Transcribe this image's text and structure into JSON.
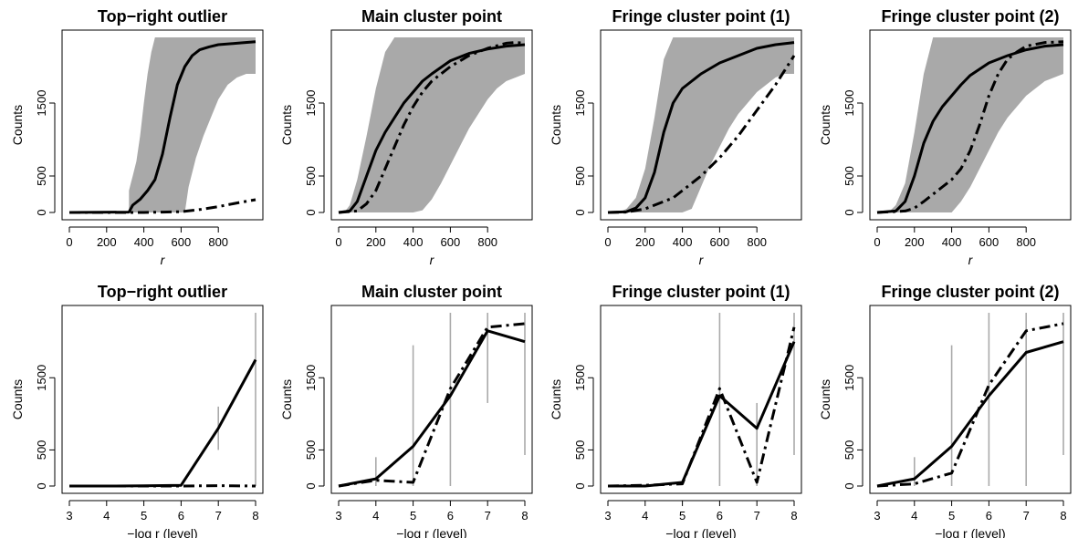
{
  "chart_data": [
    {
      "type": "line",
      "row": 1,
      "title": "Top−right outlier",
      "xlabel": "r",
      "ylabel": "Counts",
      "xlim": [
        0,
        1000
      ],
      "ylim": [
        0,
        2400
      ],
      "xticks": [
        0,
        200,
        400,
        600,
        800
      ],
      "yticks": [
        0,
        500,
        1500
      ],
      "band": {
        "x": [
          320,
          330,
          340,
          360,
          380,
          400,
          420,
          440,
          460,
          480,
          500,
          520,
          540,
          560,
          580,
          600,
          620,
          640,
          680,
          720,
          760,
          800,
          850,
          900,
          950,
          1000
        ],
        "lower": [
          0,
          0,
          0,
          0,
          0,
          0,
          0,
          0,
          0,
          0,
          0,
          0,
          0,
          0,
          0,
          0,
          0,
          350,
          750,
          1050,
          1300,
          1550,
          1750,
          1850,
          1900,
          1900
        ],
        "upper": [
          300,
          400,
          500,
          700,
          1050,
          1500,
          1900,
          2200,
          2400,
          2400,
          2400,
          2400,
          2400,
          2400,
          2400,
          2400,
          2400,
          2400,
          2400,
          2400,
          2400,
          2400,
          2400,
          2400,
          2400,
          2400
        ]
      },
      "series": [
        {
          "style": "solid",
          "x": [
            0,
            320,
            340,
            380,
            420,
            460,
            500,
            540,
            580,
            620,
            660,
            700,
            750,
            800,
            900,
            1000
          ],
          "y": [
            0,
            5,
            100,
            180,
            300,
            450,
            800,
            1300,
            1750,
            2000,
            2150,
            2230,
            2270,
            2300,
            2320,
            2340
          ]
        },
        {
          "style": "dashdot",
          "x": [
            0,
            300,
            400,
            500,
            600,
            700,
            800,
            900,
            1000
          ],
          "y": [
            0,
            0,
            0,
            5,
            10,
            40,
            80,
            130,
            175
          ]
        }
      ]
    },
    {
      "type": "line",
      "row": 1,
      "title": "Main cluster point",
      "xlabel": "r",
      "ylabel": "Counts",
      "xlim": [
        0,
        1000
      ],
      "ylim": [
        0,
        2400
      ],
      "xticks": [
        0,
        200,
        400,
        600,
        800
      ],
      "yticks": [
        0,
        500,
        1500
      ],
      "band": {
        "x": [
          30,
          60,
          100,
          150,
          200,
          250,
          300,
          350,
          400,
          450,
          500,
          550,
          600,
          650,
          700,
          750,
          800,
          850,
          900,
          950,
          1000
        ],
        "lower": [
          0,
          0,
          0,
          0,
          0,
          0,
          0,
          0,
          0,
          30,
          180,
          400,
          650,
          900,
          1150,
          1350,
          1550,
          1700,
          1800,
          1850,
          1900
        ],
        "upper": [
          0,
          100,
          450,
          1050,
          1700,
          2200,
          2400,
          2400,
          2400,
          2400,
          2400,
          2400,
          2400,
          2400,
          2400,
          2400,
          2400,
          2400,
          2400,
          2400,
          2400
        ]
      },
      "series": [
        {
          "style": "solid",
          "x": [
            0,
            60,
            100,
            150,
            200,
            250,
            300,
            350,
            400,
            450,
            500,
            600,
            700,
            800,
            900,
            1000
          ],
          "y": [
            0,
            20,
            150,
            500,
            850,
            1100,
            1300,
            1500,
            1650,
            1800,
            1900,
            2080,
            2180,
            2240,
            2280,
            2300
          ]
        },
        {
          "style": "dashdot",
          "x": [
            0,
            100,
            150,
            200,
            250,
            300,
            350,
            400,
            450,
            500,
            600,
            700,
            800,
            900,
            950,
            1000
          ],
          "y": [
            0,
            20,
            120,
            300,
            600,
            900,
            1200,
            1450,
            1650,
            1800,
            2000,
            2150,
            2250,
            2320,
            2330,
            2320
          ]
        }
      ]
    },
    {
      "type": "line",
      "row": 1,
      "title": "Fringe cluster point (1)",
      "xlabel": "r",
      "ylabel": "Counts",
      "xlim": [
        0,
        1000
      ],
      "ylim": [
        0,
        2400
      ],
      "xticks": [
        0,
        200,
        400,
        600,
        800
      ],
      "yticks": [
        0,
        500,
        1500
      ],
      "band": {
        "x": [
          60,
          100,
          150,
          200,
          250,
          300,
          350,
          400,
          450,
          500,
          550,
          600,
          650,
          700,
          750,
          800,
          850,
          900,
          950,
          1000
        ],
        "lower": [
          0,
          0,
          0,
          0,
          0,
          0,
          0,
          0,
          50,
          350,
          650,
          900,
          1150,
          1350,
          1500,
          1650,
          1750,
          1850,
          1900,
          1900
        ],
        "upper": [
          0,
          50,
          200,
          600,
          1300,
          2100,
          2400,
          2400,
          2400,
          2400,
          2400,
          2400,
          2400,
          2400,
          2400,
          2400,
          2400,
          2400,
          2400,
          2400
        ]
      },
      "series": [
        {
          "style": "solid",
          "x": [
            0,
            100,
            150,
            200,
            250,
            300,
            350,
            400,
            450,
            500,
            600,
            700,
            800,
            900,
            1000
          ],
          "y": [
            0,
            10,
            60,
            200,
            550,
            1100,
            1500,
            1700,
            1800,
            1900,
            2050,
            2150,
            2250,
            2300,
            2330
          ]
        },
        {
          "style": "dashdot",
          "x": [
            0,
            100,
            200,
            250,
            300,
            350,
            400,
            450,
            500,
            600,
            700,
            800,
            900,
            1000
          ],
          "y": [
            0,
            5,
            50,
            100,
            150,
            200,
            300,
            400,
            500,
            750,
            1050,
            1400,
            1750,
            2150
          ]
        }
      ]
    },
    {
      "type": "line",
      "row": 1,
      "title": "Fringe cluster point (2)",
      "xlabel": "r",
      "ylabel": "Counts",
      "xlim": [
        0,
        1000
      ],
      "ylim": [
        0,
        2400
      ],
      "xticks": [
        0,
        200,
        400,
        600,
        800
      ],
      "yticks": [
        0,
        500,
        1500
      ],
      "band": {
        "x": [
          60,
          100,
          150,
          200,
          250,
          300,
          350,
          400,
          450,
          500,
          550,
          600,
          650,
          700,
          750,
          800,
          850,
          900,
          950,
          1000
        ],
        "lower": [
          0,
          0,
          0,
          0,
          0,
          0,
          0,
          0,
          150,
          350,
          600,
          850,
          1100,
          1300,
          1450,
          1600,
          1700,
          1800,
          1850,
          1900
        ],
        "upper": [
          0,
          100,
          400,
          1100,
          1900,
          2400,
          2400,
          2400,
          2400,
          2400,
          2400,
          2400,
          2400,
          2400,
          2400,
          2400,
          2400,
          2400,
          2400,
          2400
        ]
      },
      "series": [
        {
          "style": "solid",
          "x": [
            0,
            100,
            150,
            200,
            250,
            300,
            350,
            400,
            450,
            500,
            600,
            700,
            800,
            900,
            1000
          ],
          "y": [
            0,
            20,
            150,
            500,
            950,
            1250,
            1450,
            1600,
            1750,
            1880,
            2050,
            2150,
            2230,
            2280,
            2300
          ]
        },
        {
          "style": "dashdot",
          "x": [
            0,
            150,
            200,
            250,
            300,
            350,
            400,
            450,
            500,
            550,
            600,
            650,
            700,
            750,
            800,
            900,
            1000
          ],
          "y": [
            0,
            20,
            60,
            150,
            250,
            350,
            450,
            600,
            850,
            1200,
            1600,
            1900,
            2100,
            2200,
            2280,
            2330,
            2340
          ]
        }
      ]
    },
    {
      "type": "line",
      "row": 2,
      "title": "Top−right outlier",
      "xlabel": "−log r (level)",
      "ylabel": "Counts",
      "xlim": [
        3,
        8
      ],
      "ylim": [
        0,
        2400
      ],
      "xticks": [
        3,
        4,
        5,
        6,
        7,
        8
      ],
      "yticks": [
        0,
        500,
        1500
      ],
      "intervals": [
        {
          "x": 7,
          "lo": 500,
          "hi": 1100
        },
        {
          "x": 8,
          "lo": 0,
          "hi": 2400
        }
      ],
      "series": [
        {
          "style": "solid",
          "x": [
            3,
            4,
            5,
            6,
            7,
            8
          ],
          "y": [
            0,
            0,
            2,
            10,
            800,
            1750
          ]
        },
        {
          "style": "dashdot",
          "x": [
            3,
            4,
            5,
            6,
            7,
            8
          ],
          "y": [
            0,
            0,
            0,
            0,
            5,
            0
          ]
        }
      ]
    },
    {
      "type": "line",
      "row": 2,
      "title": "Main cluster point",
      "xlabel": "−log r (level)",
      "ylabel": "Counts",
      "xlim": [
        3,
        8
      ],
      "ylim": [
        0,
        2400
      ],
      "xticks": [
        3,
        4,
        5,
        6,
        7,
        8
      ],
      "yticks": [
        0,
        500,
        1500
      ],
      "intervals": [
        {
          "x": 4,
          "lo": 0,
          "hi": 400
        },
        {
          "x": 5,
          "lo": 0,
          "hi": 1950
        },
        {
          "x": 6,
          "lo": 0,
          "hi": 2400
        },
        {
          "x": 7,
          "lo": 1150,
          "hi": 2400
        },
        {
          "x": 8,
          "lo": 430,
          "hi": 2400
        }
      ],
      "series": [
        {
          "style": "solid",
          "x": [
            3,
            4,
            5,
            6,
            7,
            8
          ],
          "y": [
            0,
            100,
            550,
            1250,
            2150,
            2000
          ]
        },
        {
          "style": "dashdot",
          "x": [
            3,
            4,
            5,
            6,
            7,
            8
          ],
          "y": [
            0,
            80,
            50,
            1350,
            2200,
            2250
          ]
        }
      ]
    },
    {
      "type": "line",
      "row": 2,
      "title": "Fringe cluster point (1)",
      "xlabel": "−log r (level)",
      "ylabel": "Counts",
      "xlim": [
        3,
        8
      ],
      "ylim": [
        0,
        2400
      ],
      "xticks": [
        3,
        4,
        5,
        6,
        7,
        8
      ],
      "yticks": [
        0,
        500,
        1500
      ],
      "intervals": [
        {
          "x": 6,
          "lo": 0,
          "hi": 2400
        },
        {
          "x": 7,
          "lo": 0,
          "hi": 1150
        },
        {
          "x": 8,
          "lo": 430,
          "hi": 2400
        }
      ],
      "series": [
        {
          "style": "solid",
          "x": [
            3,
            4,
            5,
            6,
            7,
            8
          ],
          "y": [
            0,
            0,
            50,
            1250,
            800,
            2000
          ]
        },
        {
          "style": "dashdot",
          "x": [
            3,
            4,
            5,
            6,
            7,
            8
          ],
          "y": [
            0,
            10,
            30,
            1350,
            50,
            2200
          ]
        }
      ]
    },
    {
      "type": "line",
      "row": 2,
      "title": "Fringe cluster point (2)",
      "xlabel": "−log r (level)",
      "ylabel": "Counts",
      "xlim": [
        3,
        8
      ],
      "ylim": [
        0,
        2400
      ],
      "xticks": [
        3,
        4,
        5,
        6,
        7,
        8
      ],
      "yticks": [
        0,
        500,
        1500
      ],
      "intervals": [
        {
          "x": 4,
          "lo": 0,
          "hi": 400
        },
        {
          "x": 5,
          "lo": 0,
          "hi": 1950
        },
        {
          "x": 6,
          "lo": 0,
          "hi": 2400
        },
        {
          "x": 7,
          "lo": 0,
          "hi": 2400
        },
        {
          "x": 8,
          "lo": 430,
          "hi": 2400
        }
      ],
      "series": [
        {
          "style": "solid",
          "x": [
            3,
            4,
            5,
            6,
            7,
            8
          ],
          "y": [
            0,
            100,
            550,
            1250,
            1850,
            2000
          ]
        },
        {
          "style": "dashdot",
          "x": [
            3,
            4,
            5,
            6,
            7,
            8
          ],
          "y": [
            0,
            30,
            180,
            1400,
            2150,
            2250
          ]
        }
      ]
    }
  ]
}
